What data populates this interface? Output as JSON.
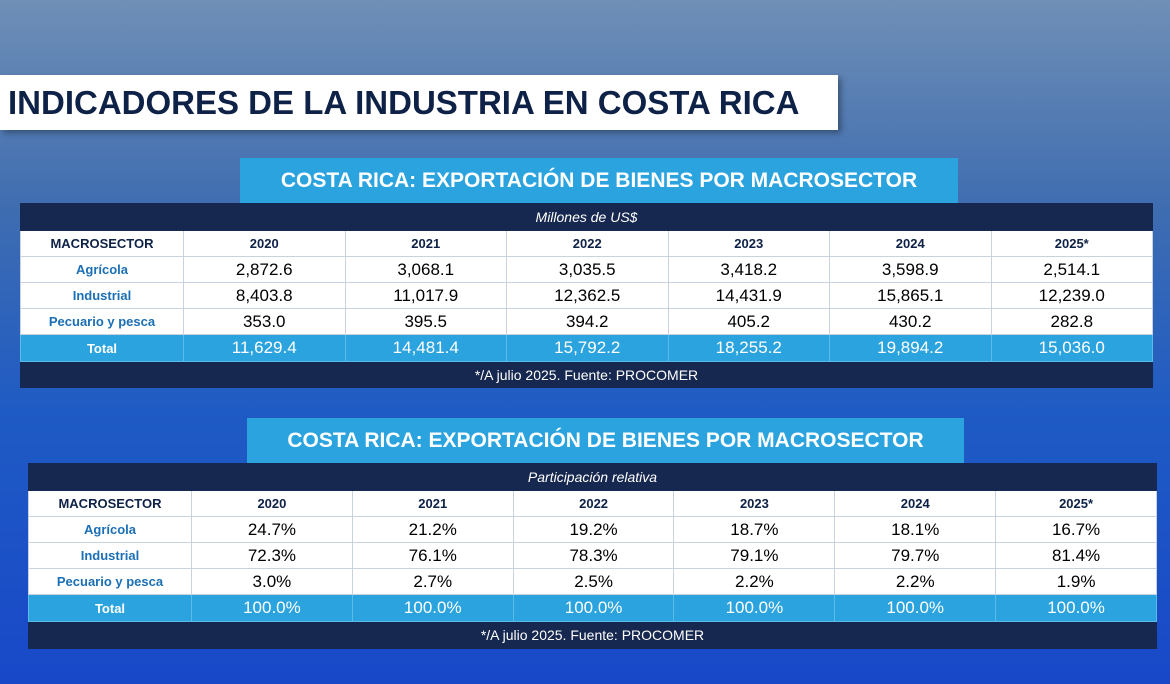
{
  "header": {
    "title": "INDICADORES DE LA INDUSTRIA EN COSTA RICA"
  },
  "tables": [
    {
      "title": "COSTA RICA: EXPORTACIÓN DE BIENES POR MACROSECTOR",
      "subtitle": "Millones de US$",
      "columns": [
        "MACROSECTOR",
        "2020",
        "2021",
        "2022",
        "2023",
        "2024",
        "2025*"
      ],
      "rows": [
        [
          "Agrícola",
          "2,872.6",
          "3,068.1",
          "3,035.5",
          "3,418.2",
          "3,598.9",
          "2,514.1"
        ],
        [
          "Industrial",
          "8,403.8",
          "11,017.9",
          "12,362.5",
          "14,431.9",
          "15,865.1",
          "12,239.0"
        ],
        [
          "Pecuario y pesca",
          "353.0",
          "395.5",
          "394.2",
          "405.2",
          "430.2",
          "282.8"
        ]
      ],
      "total": [
        "Total",
        "11,629.4",
        "14,481.4",
        "15,792.2",
        "18,255.2",
        "19,894.2",
        "15,036.0"
      ],
      "footnote": "*/A julio 2025. Fuente: PROCOMER"
    },
    {
      "title": "COSTA RICA: EXPORTACIÓN DE BIENES POR MACROSECTOR",
      "subtitle": "Participación relativa",
      "columns": [
        "MACROSECTOR",
        "2020",
        "2021",
        "2022",
        "2023",
        "2024",
        "2025*"
      ],
      "rows": [
        [
          "Agrícola",
          "24.7%",
          "21.2%",
          "19.2%",
          "18.7%",
          "18.1%",
          "16.7%"
        ],
        [
          "Industrial",
          "72.3%",
          "76.1%",
          "78.3%",
          "79.1%",
          "79.7%",
          "81.4%"
        ],
        [
          "Pecuario y pesca",
          "3.0%",
          "2.7%",
          "2.5%",
          "2.2%",
          "2.2%",
          "1.9%"
        ]
      ],
      "total": [
        "Total",
        "100.0%",
        "100.0%",
        "100.0%",
        "100.0%",
        "100.0%",
        "100.0%"
      ],
      "footnote": "*/A julio 2025. Fuente: PROCOMER"
    }
  ]
}
